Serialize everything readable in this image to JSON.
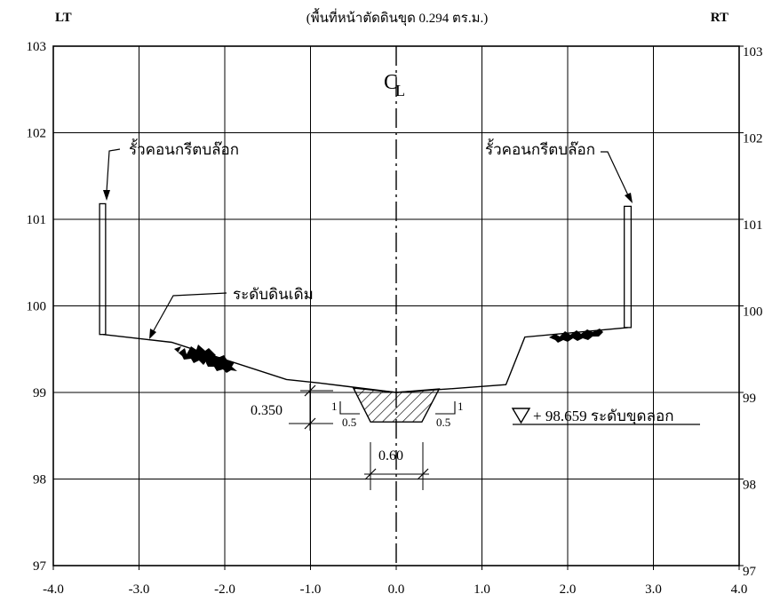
{
  "header": {
    "left": "LT",
    "title": "(พื้นที่หน้าตัดดินขุด 0.294 ตร.ม.)",
    "right": "RT"
  },
  "centerline": {
    "c": "C",
    "l": "L"
  },
  "labels": {
    "fence_left": "รั้วคอนกรีตบล๊อก",
    "fence_right": "รั้วคอนกรีตบล๊อก",
    "ground": "ระดับดินเดิม",
    "excavation_level": "+ 98.659 ระดับขุดลอก",
    "depth": "0.350",
    "bottom_width": "0.60",
    "slope_left_v": "1",
    "slope_left_h": "0.5",
    "slope_right_v": "1",
    "slope_right_h": "0.5"
  },
  "chart_data": {
    "type": "cross-section",
    "x_ticks": [
      "-4.0",
      "-3.0",
      "-2.0",
      "-1.0",
      "0.0",
      "1.0",
      "2.0",
      "3.0",
      "4.0"
    ],
    "y_ticks": [
      "97",
      "98",
      "99",
      "100",
      "101",
      "102",
      "103"
    ],
    "xlim": [
      -4.0,
      4.0
    ],
    "ylim": [
      97,
      103
    ],
    "grid": true,
    "ground_profile": [
      [
        -3.42,
        99.67
      ],
      [
        -2.62,
        99.58
      ],
      [
        -1.28,
        99.15
      ],
      [
        -0.9,
        99.11
      ],
      [
        0.0,
        99.0
      ],
      [
        0.6,
        99.04
      ],
      [
        1.28,
        99.09
      ],
      [
        1.5,
        99.64
      ],
      [
        2.7,
        99.75
      ]
    ],
    "excavation": {
      "top_left": [
        -0.5,
        99.05
      ],
      "bottom_left": [
        -0.3,
        98.659
      ],
      "bottom_right": [
        0.3,
        98.659
      ],
      "top_right": [
        0.5,
        99.04
      ],
      "bottom_level": 98.659,
      "depth": 0.35,
      "bottom_width": 0.6,
      "side_slope": "1:0.5",
      "area_m2": 0.294
    },
    "fence_left": {
      "x": [
        -3.46,
        -3.39
      ],
      "y": [
        99.67,
        101.18
      ]
    },
    "fence_right": {
      "x": [
        2.66,
        2.74
      ],
      "y": [
        99.75,
        101.15
      ]
    }
  }
}
